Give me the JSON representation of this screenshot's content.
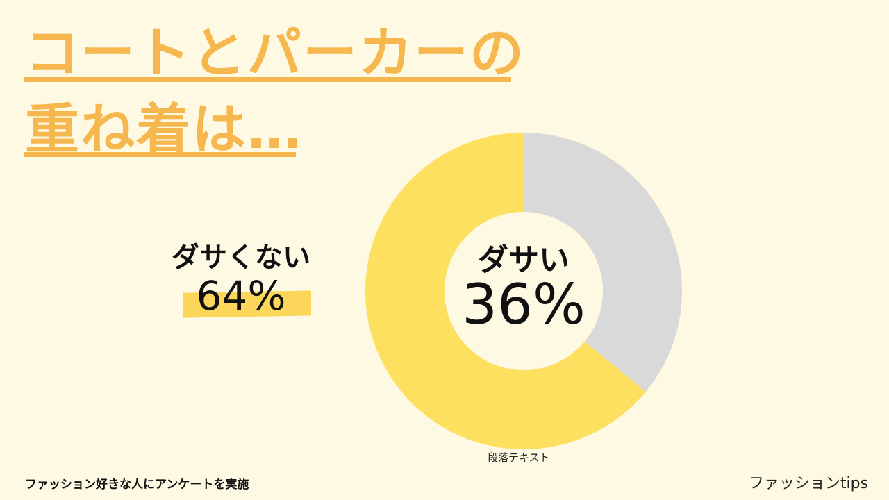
{
  "title": {
    "line1": "コートとパーカーの",
    "line2": "重ね着は…"
  },
  "labels": {
    "not_dasai": "ダサくない",
    "not_dasai_value": "64%",
    "dasai": "ダサい",
    "dasai_value": "36%",
    "caption": "段落テキスト"
  },
  "footer": {
    "survey_note": "ファッション好きな人にアンケートを実施",
    "brand": "ファッションtips"
  },
  "colors": {
    "background": "#fdf9e3",
    "title": "#f6b74f",
    "slice_not_dasai": "#fde05f",
    "slice_dasai": "#d9d9d9",
    "hole": "#fdf9e3"
  },
  "chart_data": {
    "type": "pie",
    "style": "donut",
    "slices": [
      {
        "label": "ダサい",
        "value": 36,
        "color": "#d9d9d9"
      },
      {
        "label": "ダサくない",
        "value": 64,
        "color": "#fde05f"
      }
    ],
    "start": "top",
    "direction": "clockwise"
  }
}
